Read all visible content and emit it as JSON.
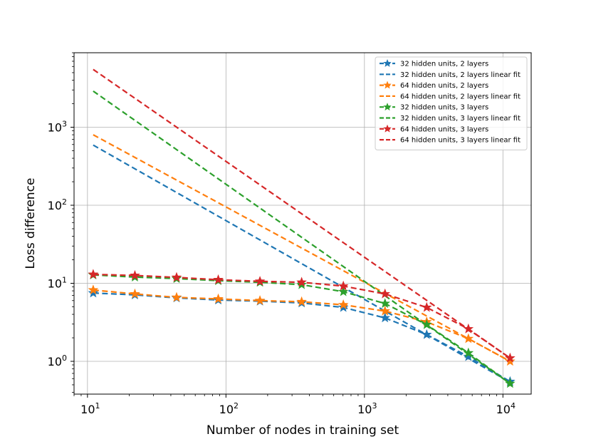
{
  "chart_data": {
    "type": "line",
    "title": "",
    "xlabel": "Number of nodes in training set",
    "ylabel": "Loss difference",
    "xscale": "log",
    "yscale": "log",
    "xlim": [
      8,
      16000
    ],
    "ylim": [
      0.38,
      9000
    ],
    "grid": true,
    "legend_position": "top-right",
    "x_ticks": [
      {
        "value": 10,
        "base": "10",
        "exp": "1"
      },
      {
        "value": 100,
        "base": "10",
        "exp": "2"
      },
      {
        "value": 1000,
        "base": "10",
        "exp": "3"
      },
      {
        "value": 10000,
        "base": "10",
        "exp": "4"
      }
    ],
    "y_ticks": [
      {
        "value": 1,
        "base": "10",
        "exp": "0"
      },
      {
        "value": 10,
        "base": "10",
        "exp": "1"
      },
      {
        "value": 100,
        "base": "10",
        "exp": "2"
      },
      {
        "value": 1000,
        "base": "10",
        "exp": "3"
      }
    ],
    "x": [
      11,
      22,
      44,
      88,
      176,
      352,
      704,
      1408,
      2816,
      5632,
      11264
    ],
    "series": [
      {
        "name": "32 hidden units, 2 layers",
        "kind": "data",
        "color": "#1f77b4",
        "values": [
          7.5,
          7.1,
          6.5,
          6.1,
          5.9,
          5.6,
          4.9,
          3.6,
          2.2,
          1.15,
          0.55
        ]
      },
      {
        "name": "32 hidden units, 2 layers linear fit",
        "kind": "fit",
        "color": "#1f77b4",
        "fit_start": [
          11,
          590
        ],
        "fit_end": [
          11264,
          0.54
        ]
      },
      {
        "name": "64 hidden units, 2 layers",
        "kind": "data",
        "color": "#ff7f0e",
        "values": [
          8.2,
          7.3,
          6.6,
          6.3,
          6.0,
          5.8,
          5.3,
          4.4,
          3.2,
          1.95,
          1.0
        ]
      },
      {
        "name": "64 hidden units, 2 layers linear fit",
        "kind": "fit",
        "color": "#ff7f0e",
        "fit_start": [
          11,
          800
        ],
        "fit_end": [
          11264,
          1.0
        ]
      },
      {
        "name": "32 hidden units, 3 layers",
        "kind": "data",
        "color": "#2ca02c",
        "values": [
          12.8,
          12.0,
          11.5,
          10.8,
          10.3,
          9.6,
          7.8,
          5.5,
          2.95,
          1.28,
          0.52
        ]
      },
      {
        "name": "32 hidden units, 3 layers linear fit",
        "kind": "fit",
        "color": "#2ca02c",
        "fit_start": [
          11,
          2900
        ],
        "fit_end": [
          11264,
          0.52
        ]
      },
      {
        "name": "64 hidden units, 3 layers",
        "kind": "data",
        "color": "#d62728",
        "values": [
          13.0,
          12.6,
          11.9,
          11.1,
          10.6,
          10.3,
          9.2,
          7.3,
          4.9,
          2.6,
          1.1
        ]
      },
      {
        "name": "64 hidden units, 3 layers linear fit",
        "kind": "fit",
        "color": "#d62728",
        "fit_start": [
          11,
          5500
        ],
        "fit_end": [
          11264,
          1.1
        ]
      }
    ]
  }
}
